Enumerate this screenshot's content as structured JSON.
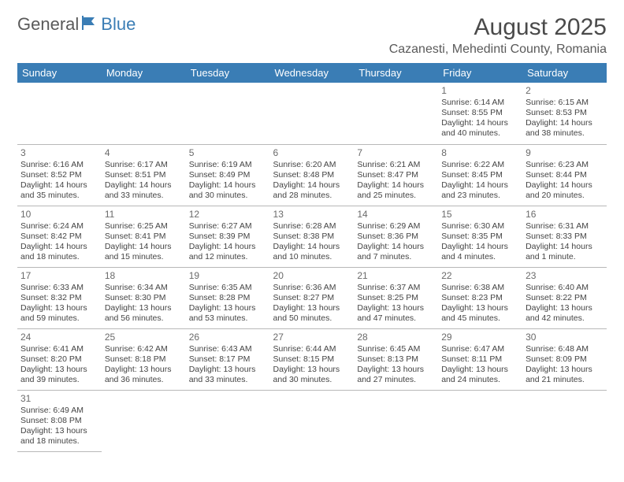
{
  "logo": {
    "part1": "General",
    "part2": "Blue"
  },
  "title": "August 2025",
  "location": "Cazanesti, Mehedinti County, Romania",
  "colors": {
    "header_bg": "#3a7db5",
    "header_text": "#ffffff",
    "body_text": "#444444",
    "daynum_text": "#6a6a6a",
    "border": "#b8b8b8",
    "logo_gray": "#5a5a5a",
    "logo_blue": "#3a7db5"
  },
  "weekdays": [
    "Sunday",
    "Monday",
    "Tuesday",
    "Wednesday",
    "Thursday",
    "Friday",
    "Saturday"
  ],
  "weeks": [
    [
      null,
      null,
      null,
      null,
      null,
      {
        "num": "1",
        "sunrise": "6:14 AM",
        "sunset": "8:55 PM",
        "daylight": "14 hours and 40 minutes."
      },
      {
        "num": "2",
        "sunrise": "6:15 AM",
        "sunset": "8:53 PM",
        "daylight": "14 hours and 38 minutes."
      }
    ],
    [
      {
        "num": "3",
        "sunrise": "6:16 AM",
        "sunset": "8:52 PM",
        "daylight": "14 hours and 35 minutes."
      },
      {
        "num": "4",
        "sunrise": "6:17 AM",
        "sunset": "8:51 PM",
        "daylight": "14 hours and 33 minutes."
      },
      {
        "num": "5",
        "sunrise": "6:19 AM",
        "sunset": "8:49 PM",
        "daylight": "14 hours and 30 minutes."
      },
      {
        "num": "6",
        "sunrise": "6:20 AM",
        "sunset": "8:48 PM",
        "daylight": "14 hours and 28 minutes."
      },
      {
        "num": "7",
        "sunrise": "6:21 AM",
        "sunset": "8:47 PM",
        "daylight": "14 hours and 25 minutes."
      },
      {
        "num": "8",
        "sunrise": "6:22 AM",
        "sunset": "8:45 PM",
        "daylight": "14 hours and 23 minutes."
      },
      {
        "num": "9",
        "sunrise": "6:23 AM",
        "sunset": "8:44 PM",
        "daylight": "14 hours and 20 minutes."
      }
    ],
    [
      {
        "num": "10",
        "sunrise": "6:24 AM",
        "sunset": "8:42 PM",
        "daylight": "14 hours and 18 minutes."
      },
      {
        "num": "11",
        "sunrise": "6:25 AM",
        "sunset": "8:41 PM",
        "daylight": "14 hours and 15 minutes."
      },
      {
        "num": "12",
        "sunrise": "6:27 AM",
        "sunset": "8:39 PM",
        "daylight": "14 hours and 12 minutes."
      },
      {
        "num": "13",
        "sunrise": "6:28 AM",
        "sunset": "8:38 PM",
        "daylight": "14 hours and 10 minutes."
      },
      {
        "num": "14",
        "sunrise": "6:29 AM",
        "sunset": "8:36 PM",
        "daylight": "14 hours and 7 minutes."
      },
      {
        "num": "15",
        "sunrise": "6:30 AM",
        "sunset": "8:35 PM",
        "daylight": "14 hours and 4 minutes."
      },
      {
        "num": "16",
        "sunrise": "6:31 AM",
        "sunset": "8:33 PM",
        "daylight": "14 hours and 1 minute."
      }
    ],
    [
      {
        "num": "17",
        "sunrise": "6:33 AM",
        "sunset": "8:32 PM",
        "daylight": "13 hours and 59 minutes."
      },
      {
        "num": "18",
        "sunrise": "6:34 AM",
        "sunset": "8:30 PM",
        "daylight": "13 hours and 56 minutes."
      },
      {
        "num": "19",
        "sunrise": "6:35 AM",
        "sunset": "8:28 PM",
        "daylight": "13 hours and 53 minutes."
      },
      {
        "num": "20",
        "sunrise": "6:36 AM",
        "sunset": "8:27 PM",
        "daylight": "13 hours and 50 minutes."
      },
      {
        "num": "21",
        "sunrise": "6:37 AM",
        "sunset": "8:25 PM",
        "daylight": "13 hours and 47 minutes."
      },
      {
        "num": "22",
        "sunrise": "6:38 AM",
        "sunset": "8:23 PM",
        "daylight": "13 hours and 45 minutes."
      },
      {
        "num": "23",
        "sunrise": "6:40 AM",
        "sunset": "8:22 PM",
        "daylight": "13 hours and 42 minutes."
      }
    ],
    [
      {
        "num": "24",
        "sunrise": "6:41 AM",
        "sunset": "8:20 PM",
        "daylight": "13 hours and 39 minutes."
      },
      {
        "num": "25",
        "sunrise": "6:42 AM",
        "sunset": "8:18 PM",
        "daylight": "13 hours and 36 minutes."
      },
      {
        "num": "26",
        "sunrise": "6:43 AM",
        "sunset": "8:17 PM",
        "daylight": "13 hours and 33 minutes."
      },
      {
        "num": "27",
        "sunrise": "6:44 AM",
        "sunset": "8:15 PM",
        "daylight": "13 hours and 30 minutes."
      },
      {
        "num": "28",
        "sunrise": "6:45 AM",
        "sunset": "8:13 PM",
        "daylight": "13 hours and 27 minutes."
      },
      {
        "num": "29",
        "sunrise": "6:47 AM",
        "sunset": "8:11 PM",
        "daylight": "13 hours and 24 minutes."
      },
      {
        "num": "30",
        "sunrise": "6:48 AM",
        "sunset": "8:09 PM",
        "daylight": "13 hours and 21 minutes."
      }
    ],
    [
      {
        "num": "31",
        "sunrise": "6:49 AM",
        "sunset": "8:08 PM",
        "daylight": "13 hours and 18 minutes."
      },
      null,
      null,
      null,
      null,
      null,
      null
    ]
  ],
  "labels": {
    "sunrise": "Sunrise: ",
    "sunset": "Sunset: ",
    "daylight": "Daylight: "
  }
}
